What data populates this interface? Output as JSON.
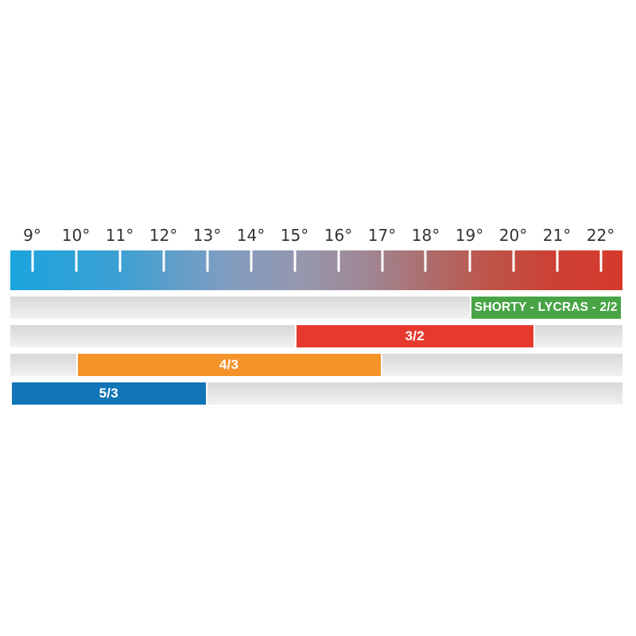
{
  "chart_data": {
    "type": "range-bars",
    "title": "",
    "axis": {
      "domain_min": 8.5,
      "domain_max": 22.5,
      "tick_values": [
        9,
        10,
        11,
        12,
        13,
        14,
        15,
        16,
        17,
        18,
        19,
        20,
        21,
        22
      ],
      "tick_labels": [
        "9°",
        "10°",
        "11°",
        "12°",
        "13°",
        "14°",
        "15°",
        "16°",
        "17°",
        "18°",
        "19°",
        "20°",
        "21°",
        "22°"
      ],
      "tick_label_color": "#333333",
      "tick_mark_color": "#ffffff",
      "gradient_stops": [
        {
          "color": "#1aa4dd",
          "pos": 0
        },
        {
          "color": "#3da0d3",
          "pos": 18
        },
        {
          "color": "#7f9cc0",
          "pos": 35
        },
        {
          "color": "#9697ac",
          "pos": 48
        },
        {
          "color": "#a08795",
          "pos": 58
        },
        {
          "color": "#ac6e6e",
          "pos": 68
        },
        {
          "color": "#bd5549",
          "pos": 78
        },
        {
          "color": "#cc4136",
          "pos": 88
        },
        {
          "color": "#d53a2c",
          "pos": 100
        }
      ]
    },
    "rows": [
      {
        "label": "SHORTY - LYCRAS - 2/2",
        "start": 19,
        "end": 22.5,
        "color": "#48a446"
      },
      {
        "label": "3/2",
        "start": 15,
        "end": 20.5,
        "color": "#e63a2e"
      },
      {
        "label": "4/3",
        "start": 10,
        "end": 17,
        "color": "#f4932a"
      },
      {
        "label": "5/3",
        "start": 8.5,
        "end": 13,
        "color": "#1175b7"
      }
    ],
    "track": {
      "top_color": "#d8d8d8",
      "bottom_color": "#f1f1f1"
    },
    "bar_text_color": "#ffffff",
    "background_color": "#ffffff",
    "legend": "none",
    "grid": "off"
  }
}
